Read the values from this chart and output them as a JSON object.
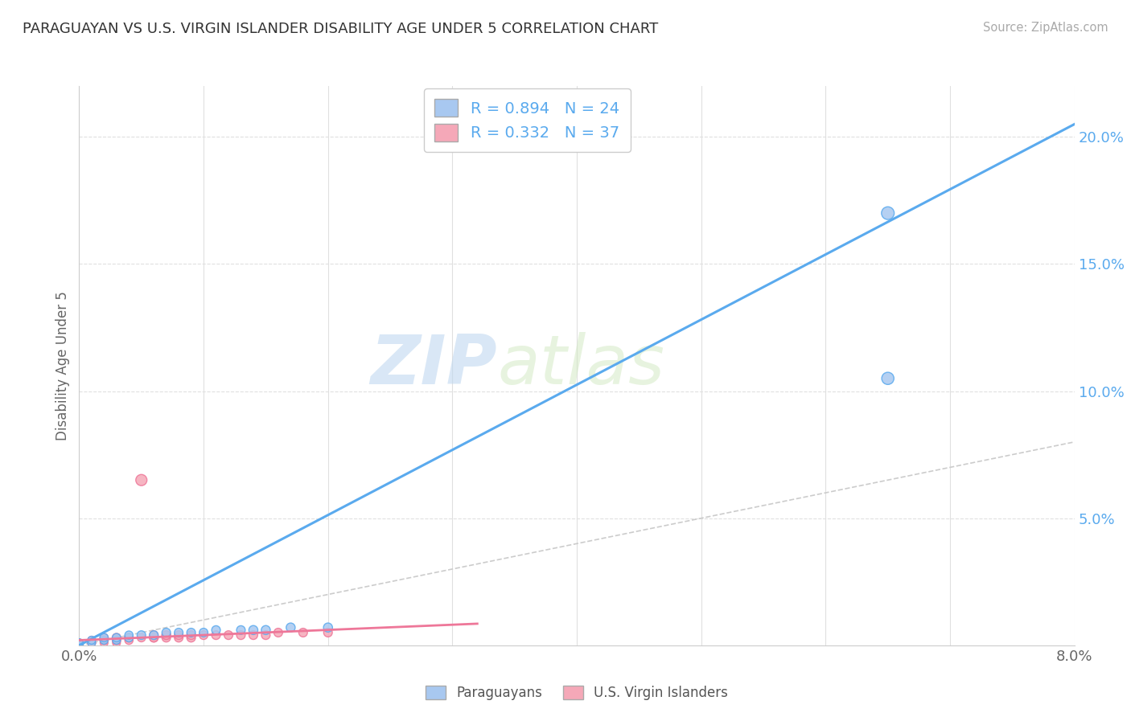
{
  "title": "PARAGUAYAN VS U.S. VIRGIN ISLANDER DISABILITY AGE UNDER 5 CORRELATION CHART",
  "source": "Source: ZipAtlas.com",
  "ylabel": "Disability Age Under 5",
  "legend_label1": "Paraguayans",
  "legend_label2": "U.S. Virgin Islanders",
  "r1": 0.894,
  "n1": 24,
  "r2": 0.332,
  "n2": 37,
  "color_blue": "#a8c8f0",
  "color_pink": "#f5a8b8",
  "line_blue": "#5aaaee",
  "line_pink": "#ee7799",
  "line_gray": "#cccccc",
  "background": "#ffffff",
  "xlim": [
    0.0,
    0.08
  ],
  "ylim": [
    0.0,
    0.22
  ],
  "blue_line_x0": 0.0,
  "blue_line_x1": 0.08,
  "blue_line_y0": 0.0,
  "blue_line_y1": 0.205,
  "pink_line_x0": 0.0,
  "pink_line_x1": 0.032,
  "pink_line_y0": 0.002,
  "pink_line_y1": 0.0085,
  "gray_line_x0": 0.0,
  "gray_line_x1": 0.08,
  "gray_line_y0": 0.0,
  "gray_line_y1": 0.08,
  "blue_points_x": [
    0.0,
    0.0,
    0.001,
    0.001,
    0.002,
    0.002,
    0.003,
    0.003,
    0.004,
    0.004,
    0.005,
    0.006,
    0.007,
    0.008,
    0.009,
    0.01,
    0.011,
    0.013,
    0.014,
    0.015,
    0.017,
    0.02,
    0.065,
    0.065
  ],
  "blue_points_y": [
    0.0,
    0.001,
    0.001,
    0.002,
    0.002,
    0.003,
    0.002,
    0.003,
    0.003,
    0.004,
    0.004,
    0.004,
    0.005,
    0.005,
    0.005,
    0.005,
    0.006,
    0.006,
    0.006,
    0.006,
    0.007,
    0.007,
    0.105,
    0.17
  ],
  "pink_points_x": [
    0.0,
    0.0,
    0.0,
    0.001,
    0.001,
    0.001,
    0.002,
    0.002,
    0.002,
    0.002,
    0.003,
    0.003,
    0.003,
    0.003,
    0.004,
    0.004,
    0.005,
    0.005,
    0.006,
    0.006,
    0.006,
    0.007,
    0.007,
    0.007,
    0.008,
    0.008,
    0.009,
    0.009,
    0.01,
    0.011,
    0.012,
    0.013,
    0.014,
    0.015,
    0.016,
    0.018,
    0.02
  ],
  "pink_points_y": [
    0.0,
    0.0,
    0.001,
    0.001,
    0.001,
    0.002,
    0.001,
    0.002,
    0.002,
    0.003,
    0.001,
    0.002,
    0.002,
    0.003,
    0.002,
    0.003,
    0.003,
    0.065,
    0.003,
    0.003,
    0.004,
    0.003,
    0.004,
    0.004,
    0.003,
    0.004,
    0.003,
    0.004,
    0.004,
    0.004,
    0.004,
    0.004,
    0.004,
    0.004,
    0.005,
    0.005,
    0.005
  ],
  "blue_sizes": [
    50,
    50,
    50,
    50,
    50,
    55,
    50,
    55,
    55,
    55,
    60,
    60,
    60,
    60,
    60,
    60,
    60,
    60,
    65,
    65,
    65,
    65,
    120,
    130
  ],
  "pink_sizes": [
    50,
    50,
    50,
    50,
    50,
    50,
    50,
    50,
    55,
    55,
    50,
    55,
    55,
    60,
    55,
    60,
    55,
    100,
    60,
    60,
    60,
    60,
    60,
    60,
    60,
    60,
    60,
    60,
    60,
    60,
    60,
    60,
    60,
    60,
    60,
    60,
    60
  ]
}
